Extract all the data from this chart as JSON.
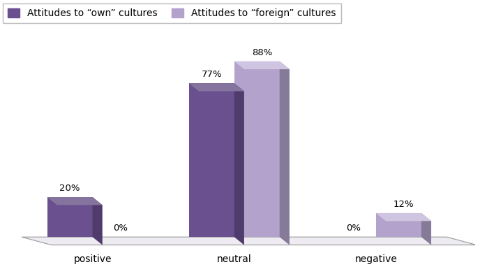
{
  "categories": [
    "positive",
    "neutral",
    "negative"
  ],
  "series1_label": "Attitudes to “own” cultures",
  "series2_label": "Attitudes to “foreign” cultures",
  "series1_values": [
    20,
    77,
    0
  ],
  "series2_values": [
    0,
    88,
    12
  ],
  "series1_color": "#6b5090",
  "series2_color": "#b3a3cc",
  "bar_width": 0.32,
  "label_fontsize": 9.5,
  "tick_fontsize": 10,
  "legend_fontsize": 10,
  "background_color": "#ffffff",
  "floor_color": "#e0dce8",
  "floor_edge_color": "#999999",
  "shadow_color": "#c5bdd8"
}
